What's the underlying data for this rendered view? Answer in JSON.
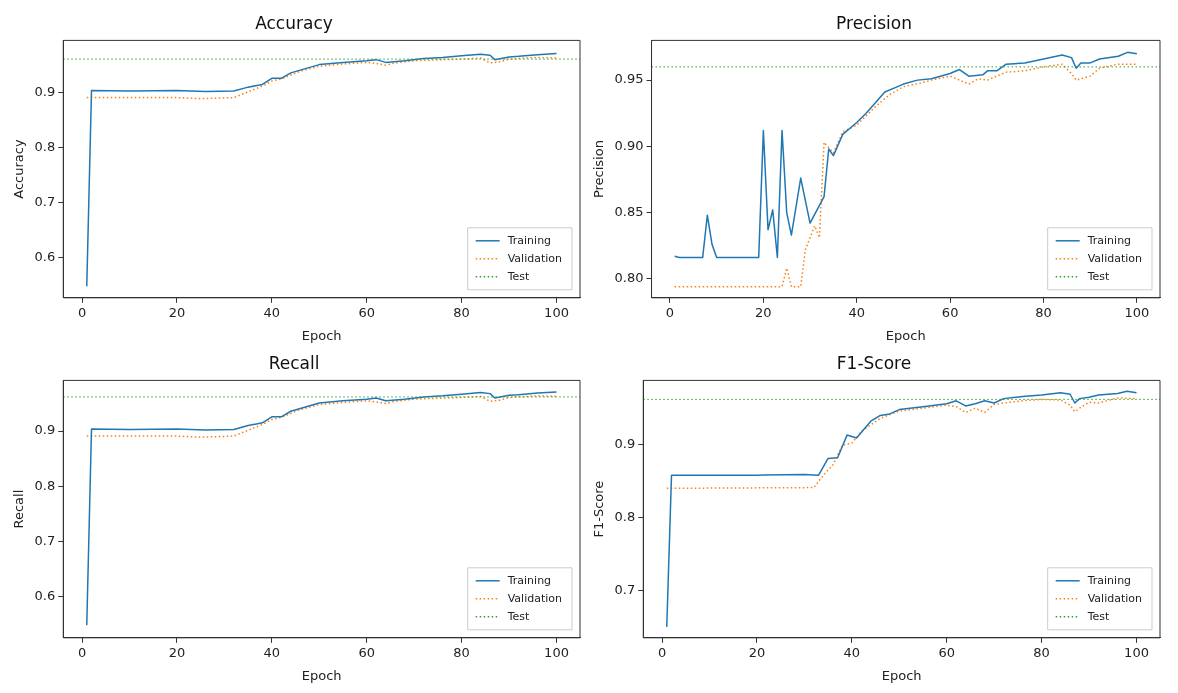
{
  "chart_data": [
    {
      "type": "line",
      "title": "Accuracy",
      "xlabel": "Epoch",
      "ylabel": "Accuracy",
      "xlim": [
        -3.95,
        104.95
      ],
      "ylim": [
        0.527,
        0.995
      ],
      "xticks": [
        0,
        20,
        40,
        60,
        80,
        100
      ],
      "yticks": [
        0.6,
        0.7,
        0.8,
        0.9
      ],
      "legend": "bottom right",
      "series": [
        {
          "name": "Training",
          "color": "#1f77b4",
          "line_style": "solid",
          "x": [
            1,
            2,
            10,
            20,
            26,
            32,
            35,
            38,
            40,
            42,
            44,
            48,
            50,
            55,
            60,
            62,
            64,
            68,
            72,
            76,
            80,
            84,
            86,
            87,
            90,
            92,
            96,
            100
          ],
          "values": [
            0.548,
            0.904,
            0.903,
            0.904,
            0.902,
            0.903,
            0.91,
            0.915,
            0.926,
            0.926,
            0.936,
            0.946,
            0.951,
            0.955,
            0.958,
            0.96,
            0.955,
            0.958,
            0.962,
            0.964,
            0.967,
            0.97,
            0.968,
            0.96,
            0.965,
            0.966,
            0.969,
            0.971
          ]
        },
        {
          "name": "Validation",
          "color": "#ff7f0e",
          "line_style": "dotted",
          "x": [
            1,
            10,
            20,
            25,
            32,
            36,
            38,
            40,
            42,
            46,
            50,
            55,
            60,
            62,
            64,
            66,
            70,
            76,
            80,
            84,
            86,
            88,
            90,
            96,
            100
          ],
          "values": [
            0.891,
            0.891,
            0.891,
            0.889,
            0.891,
            0.905,
            0.912,
            0.921,
            0.925,
            0.939,
            0.948,
            0.952,
            0.955,
            0.953,
            0.95,
            0.954,
            0.958,
            0.96,
            0.961,
            0.963,
            0.954,
            0.956,
            0.961,
            0.964,
            0.963
          ]
        }
      ],
      "ref_lines": [
        {
          "axis": "y",
          "value": 0.961,
          "label": "Test",
          "color": "#2ca02c",
          "line_style": "dotted"
        }
      ]
    },
    {
      "type": "line",
      "title": "Precision",
      "xlabel": "Epoch",
      "ylabel": "Precision",
      "xlim": [
        -3.95,
        104.95
      ],
      "ylim": [
        0.7856,
        0.98
      ],
      "xticks": [
        0,
        20,
        40,
        60,
        80,
        100
      ],
      "yticks": [
        {
          "value": 0.8,
          "label": "0.80"
        },
        {
          "value": 0.85,
          "label": "0.85"
        },
        {
          "value": 0.9,
          "label": "0.90"
        },
        {
          "value": 0.95,
          "label": "0.95"
        }
      ],
      "legend": "bottom right",
      "series": [
        {
          "name": "Training",
          "color": "#1f77b4",
          "line_style": "solid",
          "x": [
            1,
            2,
            7,
            8,
            9,
            10,
            19,
            20,
            21,
            22,
            23,
            24,
            25,
            26,
            28,
            30,
            33,
            34,
            35,
            37,
            40,
            42,
            44,
            46,
            48,
            50,
            53,
            56,
            60,
            62,
            64,
            67,
            68,
            70,
            72,
            76,
            80,
            84,
            86,
            87,
            88,
            90,
            92,
            96,
            98,
            100
          ],
          "values": [
            0.817,
            0.816,
            0.816,
            0.848,
            0.826,
            0.816,
            0.816,
            0.912,
            0.837,
            0.852,
            0.816,
            0.912,
            0.85,
            0.833,
            0.876,
            0.842,
            0.862,
            0.898,
            0.893,
            0.909,
            0.918,
            0.925,
            0.933,
            0.941,
            0.944,
            0.947,
            0.95,
            0.951,
            0.955,
            0.958,
            0.953,
            0.954,
            0.957,
            0.957,
            0.962,
            0.963,
            0.966,
            0.969,
            0.967,
            0.959,
            0.963,
            0.963,
            0.966,
            0.968,
            0.971,
            0.97
          ]
        },
        {
          "name": "Validation",
          "color": "#ff7f0e",
          "line_style": "dotted",
          "x": [
            1,
            24,
            25,
            26,
            28,
            29,
            31,
            32,
            33,
            35,
            37,
            40,
            44,
            47,
            50,
            54,
            56,
            60,
            62,
            64,
            66,
            68,
            72,
            76,
            80,
            84,
            86,
            87,
            90,
            92,
            96,
            100
          ],
          "values": [
            0.794,
            0.794,
            0.808,
            0.794,
            0.794,
            0.822,
            0.84,
            0.831,
            0.903,
            0.895,
            0.911,
            0.916,
            0.93,
            0.939,
            0.945,
            0.948,
            0.95,
            0.953,
            0.95,
            0.947,
            0.951,
            0.95,
            0.956,
            0.957,
            0.96,
            0.962,
            0.955,
            0.95,
            0.953,
            0.959,
            0.962,
            0.962
          ]
        }
      ],
      "ref_lines": [
        {
          "axis": "y",
          "value": 0.96,
          "label": "Test",
          "color": "#2ca02c",
          "line_style": "dotted"
        }
      ]
    },
    {
      "type": "line",
      "title": "Recall",
      "xlabel": "Epoch",
      "ylabel": "Recall",
      "xlim": [
        -3.95,
        104.95
      ],
      "ylim": [
        0.525,
        0.992
      ],
      "xticks": [
        0,
        20,
        40,
        60,
        80,
        100
      ],
      "yticks": [
        0.6,
        0.7,
        0.8,
        0.9
      ],
      "legend": "bottom right",
      "series": [
        {
          "name": "Training",
          "color": "#1f77b4",
          "line_style": "solid",
          "x": [
            1,
            2,
            10,
            20,
            26,
            32,
            35,
            38,
            40,
            42,
            44,
            48,
            50,
            55,
            60,
            62,
            64,
            68,
            72,
            76,
            80,
            84,
            86,
            87,
            90,
            92,
            96,
            100
          ],
          "values": [
            0.548,
            0.904,
            0.903,
            0.904,
            0.902,
            0.903,
            0.91,
            0.915,
            0.926,
            0.926,
            0.936,
            0.946,
            0.951,
            0.955,
            0.958,
            0.96,
            0.955,
            0.958,
            0.962,
            0.964,
            0.967,
            0.97,
            0.968,
            0.96,
            0.965,
            0.966,
            0.969,
            0.971
          ]
        },
        {
          "name": "Validation",
          "color": "#ff7f0e",
          "line_style": "dotted",
          "x": [
            1,
            10,
            20,
            25,
            32,
            36,
            38,
            40,
            42,
            46,
            50,
            55,
            60,
            62,
            64,
            66,
            70,
            76,
            80,
            84,
            86,
            88,
            90,
            96,
            100
          ],
          "values": [
            0.891,
            0.891,
            0.891,
            0.889,
            0.891,
            0.905,
            0.912,
            0.921,
            0.925,
            0.939,
            0.948,
            0.952,
            0.955,
            0.953,
            0.95,
            0.954,
            0.958,
            0.96,
            0.961,
            0.963,
            0.954,
            0.956,
            0.961,
            0.964,
            0.963
          ]
        }
      ],
      "ref_lines": [
        {
          "axis": "y",
          "value": 0.962,
          "label": "Test",
          "color": "#2ca02c",
          "line_style": "dotted"
        }
      ]
    },
    {
      "type": "line",
      "title": "F1-Score",
      "xlabel": "Epoch",
      "ylabel": "F1-Score",
      "xlim": [
        -3.95,
        104.95
      ],
      "ylim": [
        0.635,
        0.988
      ],
      "xticks": [
        0,
        20,
        40,
        60,
        80,
        100
      ],
      "yticks": [
        0.7,
        0.8,
        0.9
      ],
      "legend": "bottom right",
      "series": [
        {
          "name": "Training",
          "color": "#1f77b4",
          "line_style": "solid",
          "x": [
            1,
            2,
            10,
            20,
            30,
            33,
            35,
            37,
            39,
            41,
            44,
            46,
            48,
            50,
            55,
            60,
            62,
            64,
            66,
            68,
            70,
            72,
            76,
            80,
            84,
            86,
            87,
            88,
            90,
            92,
            96,
            98,
            100
          ],
          "values": [
            0.65,
            0.858,
            0.858,
            0.858,
            0.859,
            0.858,
            0.881,
            0.882,
            0.913,
            0.909,
            0.932,
            0.94,
            0.942,
            0.948,
            0.952,
            0.956,
            0.96,
            0.953,
            0.956,
            0.96,
            0.957,
            0.963,
            0.966,
            0.968,
            0.971,
            0.969,
            0.957,
            0.963,
            0.965,
            0.968,
            0.97,
            0.973,
            0.971
          ]
        },
        {
          "name": "Validation",
          "color": "#ff7f0e",
          "line_style": "dotted",
          "x": [
            1,
            32,
            34,
            36,
            38,
            40,
            42,
            46,
            50,
            55,
            60,
            62,
            64,
            66,
            68,
            70,
            72,
            76,
            80,
            84,
            86,
            87,
            88,
            90,
            92,
            96,
            100
          ],
          "values": [
            0.84,
            0.841,
            0.858,
            0.872,
            0.899,
            0.902,
            0.918,
            0.936,
            0.946,
            0.95,
            0.954,
            0.952,
            0.944,
            0.95,
            0.944,
            0.955,
            0.957,
            0.96,
            0.962,
            0.961,
            0.954,
            0.945,
            0.95,
            0.958,
            0.957,
            0.964,
            0.963
          ]
        }
      ],
      "ref_lines": [
        {
          "axis": "y",
          "value": 0.962,
          "label": "Test",
          "color": "#2ca02c",
          "line_style": "dotted"
        }
      ]
    }
  ]
}
